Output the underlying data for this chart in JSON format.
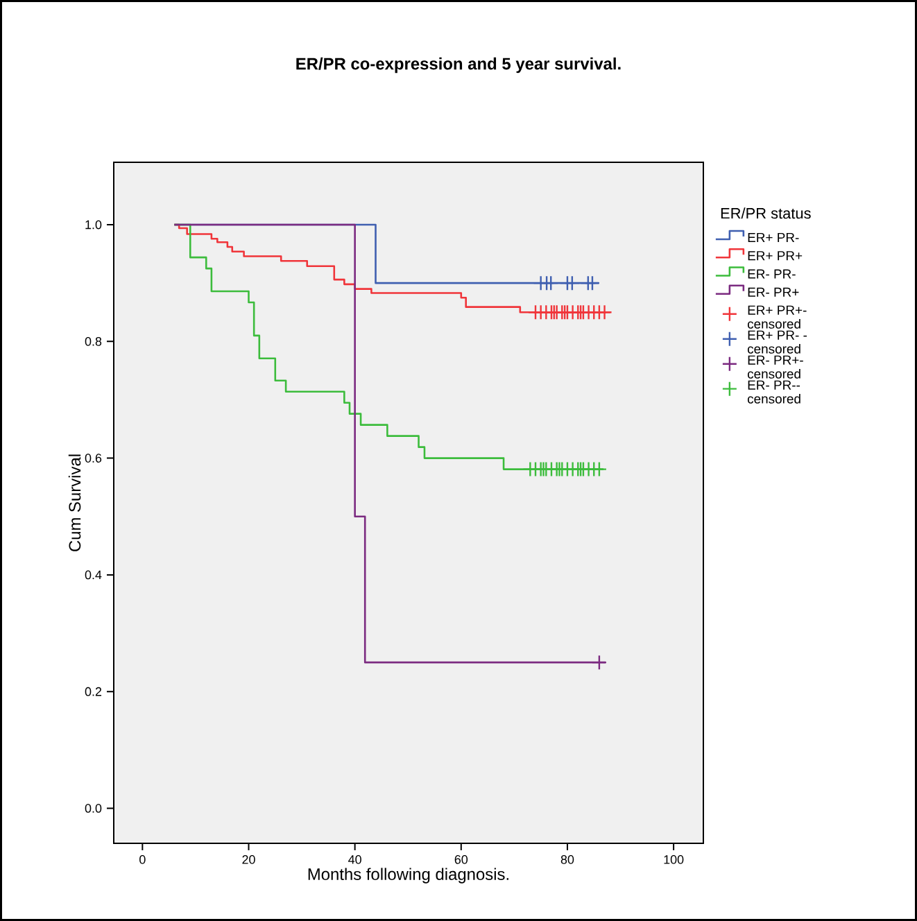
{
  "chart_data": {
    "type": "step",
    "title": "ER/PR co-expression and 5 year survival.",
    "xlabel": "Months following diagnosis.",
    "ylabel": "Cum Survival",
    "legend_title": "ER/PR status",
    "xlim": [
      -5.4,
      105.6
    ],
    "ylim": [
      -0.06,
      1.107
    ],
    "xticks": [
      0,
      20,
      40,
      60,
      80,
      100
    ],
    "yticks": [
      {
        "value": 0,
        "label": "0.0"
      },
      0.2,
      0.4,
      0.6,
      0.8,
      {
        "value": 1,
        "label": "1.0"
      }
    ],
    "legend": "right",
    "series": [
      {
        "name": "ER+ PR-",
        "color": "#3f5fb0",
        "x": [
          6,
          43.9,
          85.9
        ],
        "values": [
          1.0,
          0.9,
          0.9
        ]
      },
      {
        "name": "ER+ PR+",
        "color": "#f0353a",
        "x": [
          6,
          6.9,
          8.4,
          13.0,
          14.1,
          16.0,
          16.9,
          19.1,
          26.1,
          31.0,
          36.1,
          38.0,
          40.0,
          43.1,
          60.0,
          60.9,
          71.1,
          88.1
        ],
        "values": [
          1.0,
          0.994,
          0.984,
          0.976,
          0.97,
          0.962,
          0.954,
          0.946,
          0.938,
          0.929,
          0.906,
          0.898,
          0.89,
          0.883,
          0.875,
          0.859,
          0.85,
          0.85
        ]
      },
      {
        "name": "ER- PR-",
        "color": "#3cbc3c",
        "x": [
          6,
          9.0,
          12.0,
          13.0,
          20.0,
          21.0,
          22.0,
          25.0,
          27.0,
          38.0,
          39.0,
          41.1,
          46.1,
          52.0,
          53.1,
          68.0,
          86.8
        ],
        "values": [
          1.0,
          0.944,
          0.925,
          0.886,
          0.867,
          0.81,
          0.771,
          0.733,
          0.714,
          0.695,
          0.676,
          0.657,
          0.638,
          0.619,
          0.6,
          0.581,
          0.581
        ]
      },
      {
        "name": "ER- PR+",
        "color": "#7b2a80",
        "x": [
          6,
          40.0,
          41.9,
          87.2
        ],
        "values": [
          1.0,
          0.5,
          0.25,
          0.25
        ]
      },
      {
        "name": "ER+ PR+- censored",
        "color": "#f0353a",
        "type": "scatter",
        "marker": "cross",
        "x": [
          74,
          75,
          76,
          77,
          77.5,
          78,
          79,
          79.5,
          80,
          81,
          82,
          82.5,
          83,
          84,
          85,
          86,
          87
        ],
        "values": [
          0.85,
          0.85,
          0.85,
          0.85,
          0.85,
          0.85,
          0.85,
          0.85,
          0.85,
          0.85,
          0.85,
          0.85,
          0.85,
          0.85,
          0.85,
          0.85,
          0.85
        ]
      },
      {
        "name": "ER+ PR- - censored",
        "color": "#3f5fb0",
        "type": "scatter",
        "marker": "cross",
        "x": [
          75.0,
          76.1,
          76.9,
          80.0,
          80.9,
          83.9,
          84.7
        ],
        "values": [
          0.9,
          0.9,
          0.9,
          0.9,
          0.9,
          0.9,
          0.9
        ]
      },
      {
        "name": "ER- PR+- censored",
        "color": "#7b2a80",
        "type": "scatter",
        "marker": "cross",
        "x": [
          86.0
        ],
        "values": [
          0.25
        ]
      },
      {
        "name": "ER- PR-- censored",
        "color": "#3cbc3c",
        "type": "scatter",
        "marker": "cross",
        "x": [
          73,
          74,
          75,
          75.5,
          76,
          77,
          78,
          78.5,
          79,
          80,
          81,
          82,
          82.5,
          83,
          84,
          85,
          86
        ],
        "values": [
          0.581,
          0.581,
          0.581,
          0.581,
          0.581,
          0.581,
          0.581,
          0.581,
          0.581,
          0.581,
          0.581,
          0.581,
          0.581,
          0.581,
          0.581,
          0.581,
          0.581
        ]
      }
    ]
  }
}
